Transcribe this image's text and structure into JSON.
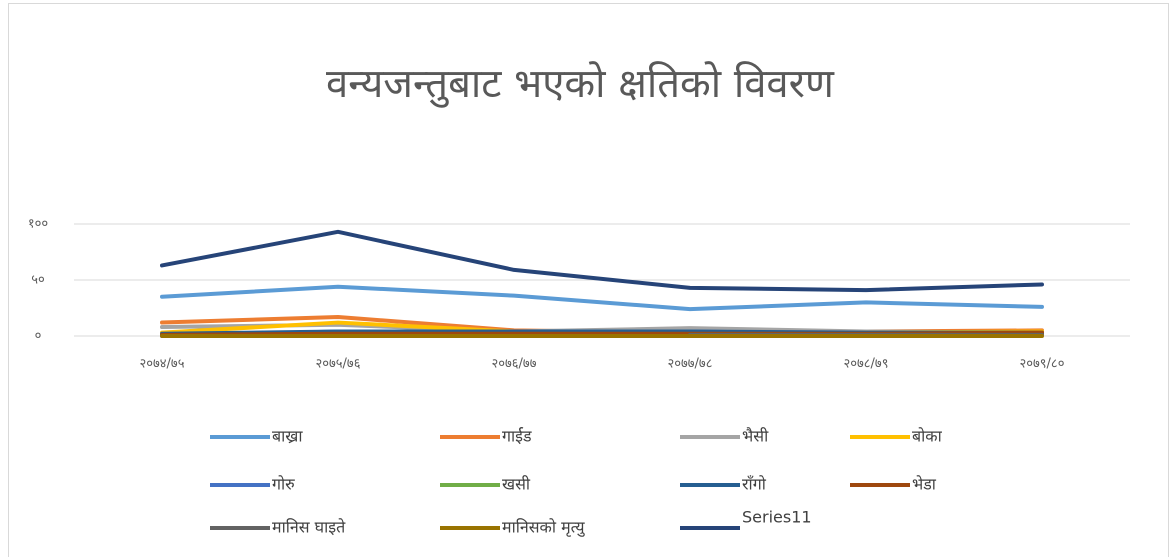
{
  "chart_data": {
    "type": "line",
    "title": "वन्यजन्तुबाट भएको क्षतिको विवरण",
    "categories": [
      "२०७४/७५",
      "२०७५/७६",
      "२०७६/७७",
      "२०७७/७८",
      "२०७८/७९",
      "२०७९/८०"
    ],
    "ylim": [
      0,
      100
    ],
    "yticks": [
      {
        "value": 0,
        "label": "०"
      },
      {
        "value": 50,
        "label": "५०"
      },
      {
        "value": 100,
        "label": "१००"
      }
    ],
    "grid": true,
    "legend": "bottom",
    "series": [
      {
        "name": "बाख्रा",
        "color": "#5b9bd5",
        "values": [
          35,
          44,
          36,
          24,
          30,
          26
        ]
      },
      {
        "name": "गार्ईड",
        "color": "#ed7d31",
        "values": [
          12,
          17,
          5,
          3,
          4,
          5
        ]
      },
      {
        "name": "भैसी",
        "color": "#a5a5a5",
        "values": [
          8,
          10,
          4,
          7,
          4,
          3
        ]
      },
      {
        "name": "बोका",
        "color": "#ffc000",
        "values": [
          3,
          12,
          4,
          0,
          3,
          4
        ]
      },
      {
        "name": "गोरु",
        "color": "#4472c4",
        "values": [
          0,
          4,
          4,
          4,
          2,
          2
        ]
      },
      {
        "name": "खसी",
        "color": "#70ad47",
        "values": [
          null,
          3,
          0,
          null,
          null,
          null
        ]
      },
      {
        "name": "राँगो",
        "color": "#255e91",
        "values": [
          2,
          4,
          4,
          4,
          3,
          3
        ]
      },
      {
        "name": "भेडा",
        "color": "#9e480e",
        "values": [
          1,
          2,
          2,
          2,
          2,
          3
        ]
      },
      {
        "name": "मानिस घाइते",
        "color": "#636363",
        "values": [
          null,
          null,
          null,
          1,
          1,
          1
        ]
      },
      {
        "name": "मानिसको मृत्यु",
        "color": "#997300",
        "values": [
          0,
          0,
          0,
          0,
          0,
          0
        ]
      },
      {
        "name": "Series11",
        "color": "#264478",
        "values": [
          63,
          93,
          59,
          43,
          41,
          46
        ]
      }
    ]
  }
}
